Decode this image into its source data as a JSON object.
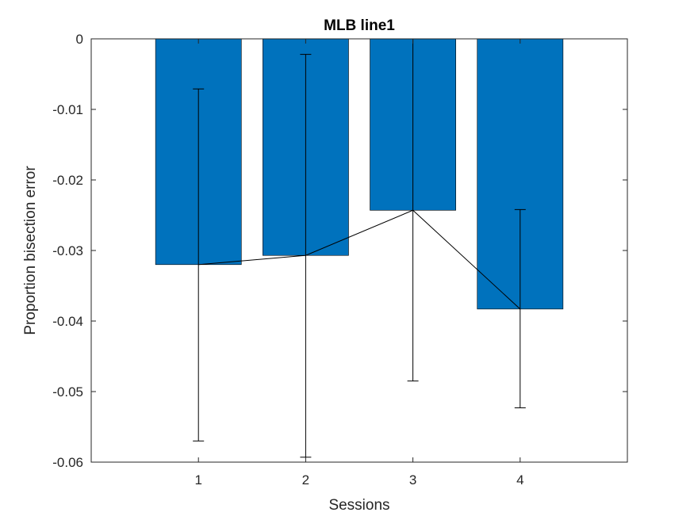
{
  "chart_data": {
    "type": "bar",
    "title": "MLB line1",
    "xlabel": "Sessions",
    "ylabel": "Proportion bisection error",
    "categories": [
      "1",
      "2",
      "3",
      "4"
    ],
    "x": [
      1,
      2,
      3,
      4
    ],
    "values": [
      -0.032,
      -0.0307,
      -0.0243,
      -0.0383
    ],
    "error_low": [
      -0.057,
      -0.0593,
      -0.0485,
      -0.0523
    ],
    "error_high": [
      -0.0071,
      -0.0022,
      0.0,
      -0.0242
    ],
    "xlim": [
      0,
      5
    ],
    "ylim": [
      -0.06,
      0
    ],
    "yticks": [
      0,
      -0.01,
      -0.02,
      -0.03,
      -0.04,
      -0.05,
      -0.06
    ],
    "ytick_labels": [
      "0",
      "-0.01",
      "-0.02",
      "-0.03",
      "-0.04",
      "-0.05",
      "-0.06"
    ],
    "bar_color": "#0072BD",
    "line_color": "#000000",
    "grid": false,
    "connecting_line": true
  }
}
